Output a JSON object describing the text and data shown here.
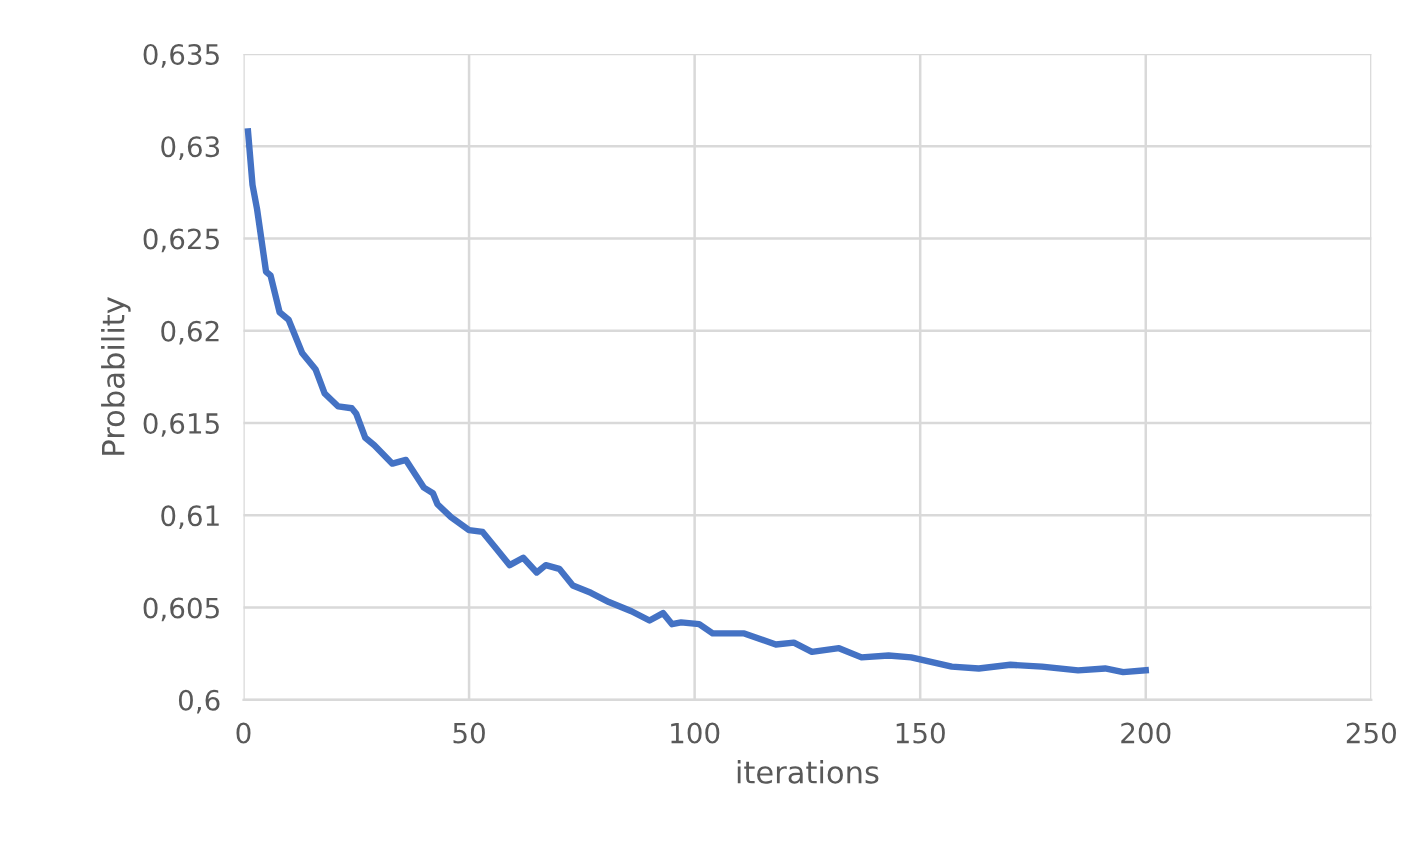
{
  "chart_data": {
    "type": "line",
    "xlabel": "iterations",
    "ylabel": "Probability",
    "x": [
      1,
      2,
      3,
      5,
      6,
      8,
      10,
      13,
      16,
      18,
      21,
      24,
      25,
      27,
      29,
      33,
      36,
      40,
      42,
      43,
      46,
      50,
      53,
      56,
      59,
      62,
      65,
      67,
      70,
      73,
      77,
      81,
      86,
      90,
      93,
      95,
      97,
      101,
      104,
      108,
      111,
      118,
      122,
      126,
      132,
      137,
      143,
      148,
      157,
      163,
      170,
      177,
      185,
      191,
      195,
      200
    ],
    "series": [
      {
        "color": "#4472c4",
        "values": [
          0.6308,
          0.6279,
          0.6266,
          0.6232,
          0.623,
          0.621,
          0.6206,
          0.6188,
          0.6179,
          0.6166,
          0.6159,
          0.6158,
          0.6155,
          0.6142,
          0.6138,
          0.6128,
          0.613,
          0.6115,
          0.6112,
          0.6106,
          0.6099,
          0.6092,
          0.6091,
          0.6082,
          0.6073,
          0.6077,
          0.6069,
          0.6073,
          0.6071,
          0.6062,
          0.6058,
          0.6053,
          0.6048,
          0.6043,
          0.6047,
          0.6041,
          0.6042,
          0.6041,
          0.6036,
          0.6036,
          0.6036,
          0.603,
          0.6031,
          0.6026,
          0.6028,
          0.6023,
          0.6024,
          0.6023,
          0.6018,
          0.6017,
          0.6019,
          0.6018,
          0.6016,
          0.6017,
          0.6015,
          0.6016
        ]
      }
    ],
    "xlim": [
      0,
      250
    ],
    "xticks": [
      0,
      50,
      100,
      150,
      200,
      250
    ],
    "ylim": [
      0.6,
      0.635
    ],
    "yticks": [
      {
        "value": 0.6,
        "label": "0,6"
      },
      {
        "value": 0.605,
        "label": "0,605"
      },
      {
        "value": 0.61,
        "label": "0,61"
      },
      {
        "value": 0.615,
        "label": "0,615"
      },
      {
        "value": 0.62,
        "label": "0,62"
      },
      {
        "value": 0.625,
        "label": "0,625"
      },
      {
        "value": 0.63,
        "label": "0,63"
      },
      {
        "value": 0.635,
        "label": "0,635"
      }
    ],
    "grid": true,
    "marker": "none",
    "line_style": "solid",
    "legend": false
  }
}
